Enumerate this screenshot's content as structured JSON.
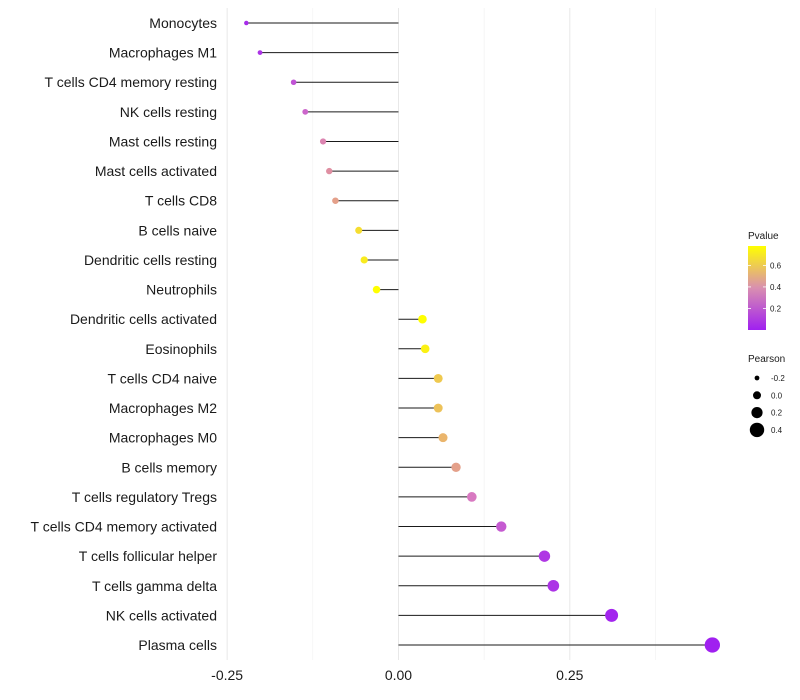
{
  "chart_data": {
    "type": "lollipop",
    "categories": [
      "Monocytes",
      "Macrophages M1",
      "T cells CD4 memory resting",
      "NK cells resting",
      "Mast cells resting",
      "Mast cells activated",
      "T cells CD8",
      "B cells naive",
      "Dendritic cells resting",
      "Neutrophils",
      "Dendritic cells activated",
      "Eosinophils",
      "T cells CD4 naive",
      "Macrophages M2",
      "Macrophages M0",
      "B cells memory",
      "T cells regulatory  Tregs ",
      "T cells CD4 memory activated",
      "T cells follicular helper",
      "T cells gamma delta",
      "NK cells activated",
      "Plasma cells"
    ],
    "pearson": [
      -0.222,
      -0.202,
      -0.153,
      -0.136,
      -0.11,
      -0.101,
      -0.092,
      -0.058,
      -0.05,
      -0.032,
      0.035,
      0.039,
      0.058,
      0.058,
      0.065,
      0.084,
      0.107,
      0.15,
      0.213,
      0.226,
      0.311,
      0.458
    ],
    "pvalue": [
      0.05,
      0.08,
      0.22,
      0.3,
      0.42,
      0.45,
      0.5,
      0.68,
      0.72,
      0.78,
      0.78,
      0.74,
      0.62,
      0.6,
      0.56,
      0.5,
      0.38,
      0.25,
      0.1,
      0.08,
      0.02,
      0.001
    ],
    "x_ticks": [
      -0.25,
      0.0,
      0.25
    ],
    "x_tick_labels": [
      "-0.25",
      "0.00",
      "0.25"
    ],
    "xlim": [
      -0.275,
      0.475
    ],
    "legend_pvalue": {
      "title": "Pvalue",
      "ticks": [
        0.2,
        0.4,
        0.6
      ],
      "tick_labels": [
        "0.2",
        "0.4",
        "0.6"
      ],
      "range": [
        0.0,
        0.78
      ],
      "colors": [
        "#A020F0",
        "#D97BC0",
        "#FFFF00"
      ]
    },
    "legend_pearson": {
      "title": "Pearson",
      "values": [
        -0.2,
        0.0,
        0.2,
        0.4
      ],
      "labels": [
        "-0.2",
        "0.0",
        "0.2",
        "0.4"
      ]
    },
    "grid": true
  }
}
